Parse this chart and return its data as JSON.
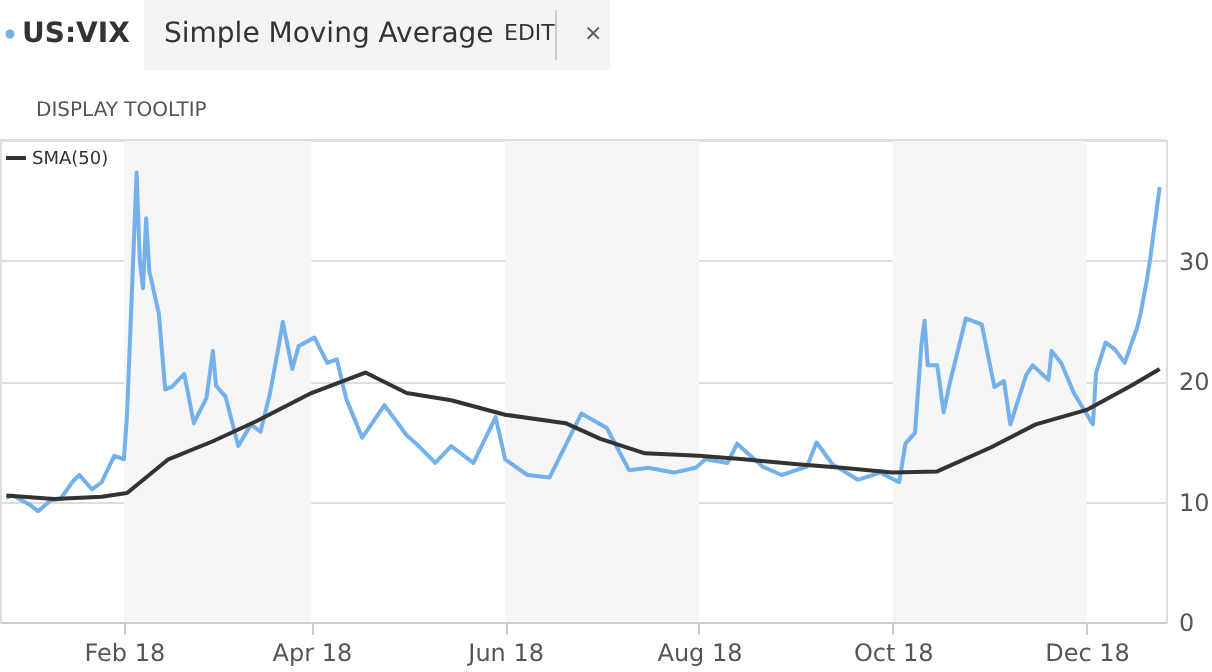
{
  "chart_data": {
    "type": "line",
    "title": "Simple Moving Average",
    "annotations": [
      "EDIT",
      "×",
      "DISPLAY TOOLTIP"
    ],
    "legend": "top left",
    "grid": "y",
    "marker": "none",
    "line_style": "solid",
    "xlim": [
      "2017-12-24",
      "2018-12-26"
    ],
    "xticks": [
      {
        "value": "2018-02-01",
        "label": "Feb 18"
      },
      {
        "value": "2018-04-01",
        "label": "Apr 18"
      },
      {
        "value": "2018-06-01",
        "label": "Jun 18"
      },
      {
        "value": "2018-08-01",
        "label": "Aug 18"
      },
      {
        "value": "2018-10-01",
        "label": "Oct 18"
      },
      {
        "value": "2018-12-01",
        "label": "Dec 18"
      }
    ],
    "ylim": [
      0,
      40
    ],
    "yticks": [
      0,
      10,
      20,
      30
    ],
    "bands": [
      {
        "axis": "x",
        "from": "2018-02-01",
        "to": "2018-04-01",
        "color": "#f6f6f6"
      },
      {
        "axis": "x",
        "from": "2018-06-01",
        "to": "2018-08-01",
        "color": "#f6f6f6"
      },
      {
        "axis": "x",
        "from": "2018-10-01",
        "to": "2018-12-01",
        "color": "#f6f6f6"
      }
    ],
    "series": [
      {
        "name": "US:VIX",
        "color": "#74b0ea",
        "x": [
          "2017-12-26",
          "2017-12-28",
          "2018-01-02",
          "2018-01-05",
          "2018-01-09",
          "2018-01-12",
          "2018-01-16",
          "2018-01-18",
          "2018-01-22",
          "2018-01-25",
          "2018-01-29",
          "2018-02-01",
          "2018-02-02",
          "2018-02-05",
          "2018-02-06",
          "2018-02-07",
          "2018-02-08",
          "2018-02-09",
          "2018-02-12",
          "2018-02-14",
          "2018-02-16",
          "2018-02-20",
          "2018-02-23",
          "2018-02-27",
          "2018-03-01",
          "2018-03-02",
          "2018-03-05",
          "2018-03-09",
          "2018-03-13",
          "2018-03-16",
          "2018-03-19",
          "2018-03-22",
          "2018-03-23",
          "2018-03-26",
          "2018-03-28",
          "2018-04-02",
          "2018-04-06",
          "2018-04-09",
          "2018-04-12",
          "2018-04-17",
          "2018-04-24",
          "2018-05-01",
          "2018-05-04",
          "2018-05-10",
          "2018-05-15",
          "2018-05-22",
          "2018-05-29",
          "2018-06-01",
          "2018-06-08",
          "2018-06-15",
          "2018-06-25",
          "2018-07-03",
          "2018-07-10",
          "2018-07-16",
          "2018-07-24",
          "2018-07-31",
          "2018-08-03",
          "2018-08-10",
          "2018-08-13",
          "2018-08-21",
          "2018-08-27",
          "2018-09-04",
          "2018-09-07",
          "2018-09-12",
          "2018-09-20",
          "2018-09-27",
          "2018-10-03",
          "2018-10-05",
          "2018-10-08",
          "2018-10-10",
          "2018-10-11",
          "2018-10-12",
          "2018-10-15",
          "2018-10-17",
          "2018-10-19",
          "2018-10-24",
          "2018-10-29",
          "2018-11-02",
          "2018-11-05",
          "2018-11-07",
          "2018-11-12",
          "2018-11-14",
          "2018-11-19",
          "2018-11-20",
          "2018-11-23",
          "2018-11-27",
          "2018-12-03",
          "2018-12-04",
          "2018-12-07",
          "2018-12-10",
          "2018-12-13",
          "2018-12-17",
          "2018-12-18",
          "2018-12-20",
          "2018-12-21",
          "2018-12-24"
        ],
        "values": [
          10.3,
          10.5,
          9.8,
          9.2,
          10.1,
          10.2,
          11.7,
          12.2,
          11.0,
          11.6,
          13.8,
          13.5,
          17.3,
          37.3,
          30.0,
          27.7,
          33.5,
          29.1,
          25.6,
          19.3,
          19.5,
          20.6,
          16.5,
          18.6,
          22.5,
          19.6,
          18.7,
          14.6,
          16.4,
          15.8,
          19.0,
          23.3,
          24.9,
          21.0,
          22.9,
          23.6,
          21.5,
          21.8,
          18.5,
          15.3,
          18.0,
          15.5,
          14.8,
          13.2,
          14.6,
          13.2,
          17.0,
          13.5,
          12.2,
          12.0,
          17.3,
          16.1,
          12.6,
          12.8,
          12.4,
          12.8,
          13.5,
          13.2,
          14.8,
          12.9,
          12.2,
          12.9,
          14.9,
          13.1,
          11.8,
          12.4,
          11.6,
          14.8,
          15.7,
          23.0,
          25.0,
          21.3,
          21.3,
          17.4,
          19.9,
          25.2,
          24.7,
          19.5,
          20.0,
          16.4,
          20.5,
          21.3,
          20.1,
          22.5,
          21.5,
          19.0,
          16.4,
          20.7,
          23.2,
          22.6,
          21.5,
          24.5,
          25.6,
          28.4,
          30.1,
          36.1
        ]
      },
      {
        "name": "SMA(50)",
        "color": "#333333",
        "x": [
          "2017-12-26",
          "2018-01-10",
          "2018-01-25",
          "2018-02-02",
          "2018-02-15",
          "2018-03-01",
          "2018-03-15",
          "2018-04-01",
          "2018-04-18",
          "2018-05-01",
          "2018-05-15",
          "2018-06-01",
          "2018-06-20",
          "2018-07-01",
          "2018-07-15",
          "2018-08-01",
          "2018-08-15",
          "2018-09-01",
          "2018-09-15",
          "2018-10-01",
          "2018-10-15",
          "2018-11-01",
          "2018-11-15",
          "2018-12-01",
          "2018-12-15",
          "2018-12-24"
        ],
        "values": [
          10.5,
          10.2,
          10.4,
          10.7,
          13.5,
          15.0,
          16.7,
          19.0,
          20.7,
          19.0,
          18.4,
          17.2,
          16.5,
          15.2,
          14.0,
          13.8,
          13.5,
          13.1,
          12.8,
          12.4,
          12.5,
          14.5,
          16.4,
          17.6,
          19.6,
          21.0
        ]
      }
    ]
  }
}
